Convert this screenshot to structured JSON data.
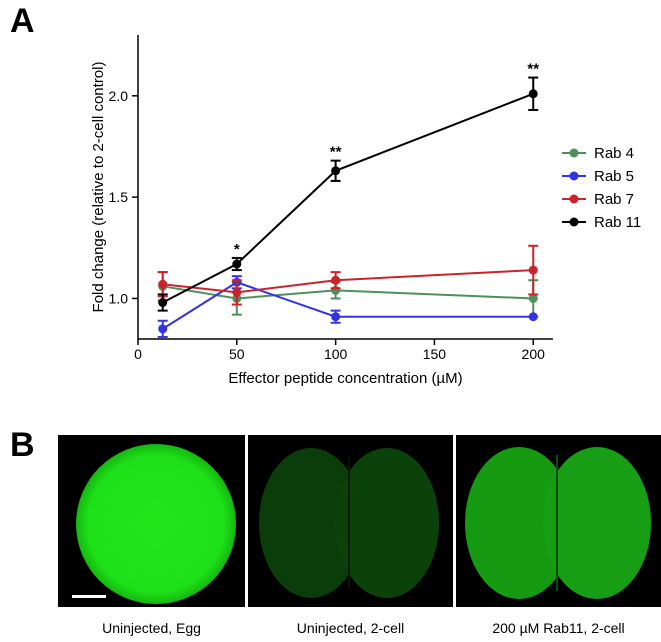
{
  "panel_a": {
    "letter": "A"
  },
  "panel_b": {
    "letter": "B",
    "captions": [
      "Uninjected, Egg",
      "Uninjected, 2-cell",
      "200 µM Rab11, 2-cell"
    ]
  },
  "chart_data": {
    "type": "line",
    "xlabel": "Effector peptide concentration (µM)",
    "ylabel": "Fold change (relative to 2-cell control)",
    "xlim": [
      0,
      210
    ],
    "ylim": [
      0.8,
      2.3
    ],
    "xticks": [
      0,
      50,
      100,
      150,
      200
    ],
    "yticks": [
      1.0,
      1.5,
      2.0
    ],
    "ytick_labels": [
      "1.0",
      "1.5",
      "2.0"
    ],
    "legend_position": "right",
    "series": [
      {
        "name": "Rab 4",
        "color": "#4f8f5c",
        "x": [
          12.5,
          50,
          100,
          200
        ],
        "y": [
          1.06,
          1.0,
          1.04,
          1.0
        ],
        "err": [
          0.07,
          0.08,
          0.04,
          0.09
        ]
      },
      {
        "name": "Rab 5",
        "color": "#3333e6",
        "x": [
          12.5,
          50,
          100,
          200
        ],
        "y": [
          0.85,
          1.08,
          0.91,
          0.91
        ],
        "err": [
          0.04,
          0.03,
          0.03,
          0.0
        ]
      },
      {
        "name": "Rab 7",
        "color": "#cc2229",
        "x": [
          12.5,
          50,
          100,
          200
        ],
        "y": [
          1.07,
          1.03,
          1.09,
          1.14
        ],
        "err": [
          0.06,
          0.06,
          0.04,
          0.12
        ]
      },
      {
        "name": "Rab 11",
        "color": "#000000",
        "x": [
          12.5,
          50,
          100,
          200
        ],
        "y": [
          0.98,
          1.17,
          1.63,
          2.01
        ],
        "err": [
          0.04,
          0.03,
          0.05,
          0.08
        ]
      }
    ],
    "annotations": [
      {
        "x": 50,
        "text": "*"
      },
      {
        "x": 100,
        "text": "**"
      },
      {
        "x": 200,
        "text": "**"
      }
    ]
  }
}
